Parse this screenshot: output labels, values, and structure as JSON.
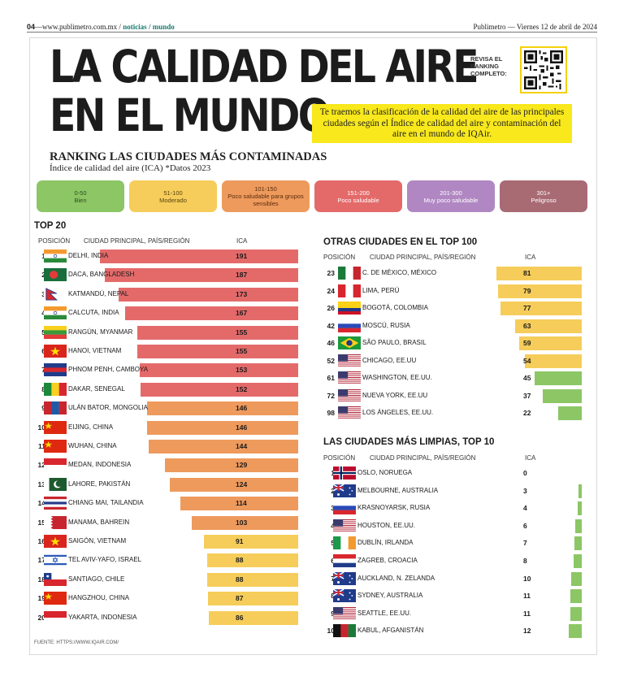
{
  "header": {
    "page": "04",
    "site": "www.publimetro.com.mx",
    "section1": "noticias",
    "section2": "mundo",
    "paper": "Publimetro",
    "date": "Viernes 12 de abril de 2024"
  },
  "title": {
    "line1": "LA CALIDAD DEL AIRE",
    "line2": "EN EL MUNDO"
  },
  "qr": {
    "line1": "REVISA EL",
    "line2": "RANKING",
    "line3": "COMPLETO:"
  },
  "intro": "Te traemos la clasificación de la calidad del aire de las principales ciudades según el Índice de calidad del aire y contaminación del aire en el mundo de IQAir.",
  "ranking": {
    "title": "RANKING LAS CIUDADES MÁS CONTAMINADAS",
    "subtitle": "Índice de calidad del aire (ICA) *Datos 2023"
  },
  "legend": [
    {
      "range": "0-50",
      "label": "Bien",
      "color": "#8cc665",
      "text": "#2e4d1e"
    },
    {
      "range": "51-100",
      "label": "Moderado",
      "color": "#f6cd5a",
      "text": "#5a4410"
    },
    {
      "range": "101-150",
      "label": "Poco saludable para grupos sensibles",
      "color": "#ee9a5d",
      "text": "#5a2d0c"
    },
    {
      "range": "151-200",
      "label": "Poco saludable",
      "color": "#e46a6a",
      "text": "#ffffff"
    },
    {
      "range": "201-300",
      "label": "Muy poco saludable",
      "color": "#b087c2",
      "text": "#ffffff"
    },
    {
      "range": "301+",
      "label": "Peligroso",
      "color": "#a86a73",
      "text": "#ffffff"
    }
  ],
  "top20": {
    "title": "TOP 20",
    "col_pos": "POSICIÓN",
    "col_city": "CIUDAD PRINCIPAL, PAÍS/REGIÓN",
    "col_ica": "ICA"
  },
  "otras": {
    "title": "OTRAS CIUDADES EN EL TOP 100",
    "col_pos": "POSICIÓN",
    "col_city": "CIUDAD PRINCIPAL, PAÍS/REGIÓN",
    "col_ica": "ICA"
  },
  "limpias": {
    "title": "LAS CIUDADES MÁS LIMPIAS, TOP 10",
    "col_pos": "POSICIÓN",
    "col_city": "CIUDAD PRINCIPAL, PAÍS/REGIÓN",
    "col_ica": "ICA"
  },
  "chart_data": [
    {
      "type": "bar",
      "title": "TOP 20",
      "xlabel": "ICA",
      "categories": [
        "1|DELHI, INDIA",
        "2|DACA, BANGLADESH",
        "3|KATMANDÚ, NEPAL",
        "4|CALCUTA, INDIA",
        "5|RANGÚN, MYANMAR",
        "6|HANOI, VIETNAM",
        "7|PHNOM PENH, CAMBOYA",
        "8|DAKAR, SENEGAL",
        "9|ULÁN BATOR, MONGOLIA",
        "10|EIJING, CHINA",
        "11|WUHAN, CHINA",
        "12|MEDAN, INDONESIA",
        "13|LAHORE, PAKISTÁN",
        "14|CHIANG MAI, TAILANDIA",
        "15|MANAMA, BAHREIN",
        "16|SAIGÓN, VIETNAM",
        "17|TEL AVIV-YAFO, ISRAEL",
        "18|SANTIAGO, CHILE",
        "19|HANGZHOU, CHINA",
        "20|YAKARTA, INDONESIA"
      ],
      "values": [
        191,
        187,
        173,
        167,
        155,
        155,
        153,
        152,
        146,
        146,
        144,
        129,
        124,
        114,
        103,
        91,
        88,
        88,
        87,
        86
      ],
      "xlim": [
        0,
        200
      ]
    },
    {
      "type": "bar",
      "title": "OTRAS CIUDADES EN EL TOP 100",
      "xlabel": "ICA",
      "categories": [
        "23|C. DE MÉXICO, MÉXICO",
        "24|LIMA, PERÚ",
        "26|BOGOTÁ, COLOMBIA",
        "42|MOSCÚ, RUSIA",
        "46|SÃO PAULO, BRASIL",
        "52|CHICAGO, EE.UU",
        "61|WASHINGTON, EE.UU.",
        "72|NUEVA YORK, EE.UU",
        "98|LOS ÁNGELES, EE.UU."
      ],
      "values": [
        81,
        79,
        77,
        63,
        59,
        54,
        45,
        37,
        22
      ],
      "xlim": [
        0,
        200
      ]
    },
    {
      "type": "bar",
      "title": "LAS CIUDADES MÁS LIMPIAS, TOP 10",
      "xlabel": "ICA",
      "categories": [
        "1|OSLO, NORUEGA",
        "2|MELBOURNE, AUSTRALIA",
        "3|KRASNOYARSK, RUSIA",
        "4|HOUSTON, EE.UU.",
        "5|DUBLÍN, IRLANDA",
        "6|ZAGREB, CROACIA",
        "7|AUCKLAND, N. ZELANDA",
        "8|SYDNEY, AUSTRALIA",
        "9|SEATTLE, EE.UU.",
        "10|KABUL, AFGANISTÁN"
      ],
      "values": [
        0,
        3,
        4,
        6,
        7,
        8,
        10,
        11,
        11,
        12
      ],
      "xlim": [
        0,
        200
      ]
    }
  ],
  "source": "FUENTE: HTTPS://WWW.IQAIR.COM/"
}
